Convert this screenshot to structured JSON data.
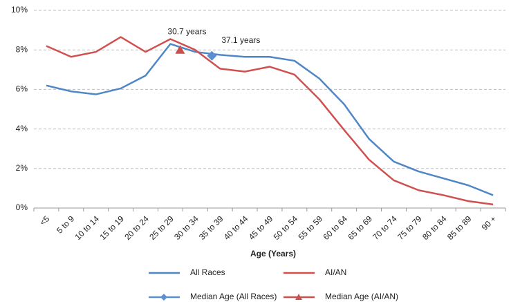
{
  "chart_data": {
    "type": "line",
    "x_label": "Age (Years)",
    "categories": [
      "<5",
      "5 to 9",
      "10 to 14",
      "15 to 19",
      "20 to 24",
      "25 to 29",
      "30 to 34",
      "35 to 39",
      "40 to 44",
      "45 to 49",
      "50 to 54",
      "55 to 59",
      "60 to 64",
      "65 to 69",
      "70 to 74",
      "75 to 79",
      "80 to 84",
      "85 to 89",
      "90 +"
    ],
    "series": [
      {
        "name": "All Races",
        "color": "#4f86c6",
        "values": [
          6.2,
          5.9,
          5.75,
          6.05,
          6.7,
          8.3,
          7.9,
          7.75,
          7.65,
          7.65,
          7.45,
          6.55,
          5.25,
          3.5,
          2.35,
          1.85,
          1.5,
          1.15,
          0.65
        ]
      },
      {
        "name": "AI/AN",
        "color": "#d0504f",
        "values": [
          8.2,
          7.65,
          7.9,
          8.65,
          7.9,
          8.55,
          8.0,
          7.05,
          6.9,
          7.15,
          6.75,
          5.5,
          3.95,
          2.45,
          1.4,
          0.9,
          0.65,
          0.35,
          0.18
        ]
      }
    ],
    "medians": [
      {
        "name": "Median Age (All Races)",
        "color": "#5b8fcf",
        "marker": "diamond",
        "x": 37.1,
        "value": 7.7,
        "label": "37.1 years"
      },
      {
        "name": "Median Age (AI/AN)",
        "color": "#c9504d",
        "marker": "triangle",
        "x": 30.7,
        "value": 8.0,
        "label": "30.7 years"
      }
    ],
    "ylim": [
      0,
      10
    ],
    "yticks": [
      {
        "value": 0,
        "label": "0%"
      },
      {
        "value": 2,
        "label": "2%"
      },
      {
        "value": 4,
        "label": "4%"
      },
      {
        "value": 6,
        "label": "6%"
      },
      {
        "value": 8,
        "label": "8%"
      },
      {
        "value": 10,
        "label": "10%"
      }
    ],
    "grid": true
  }
}
